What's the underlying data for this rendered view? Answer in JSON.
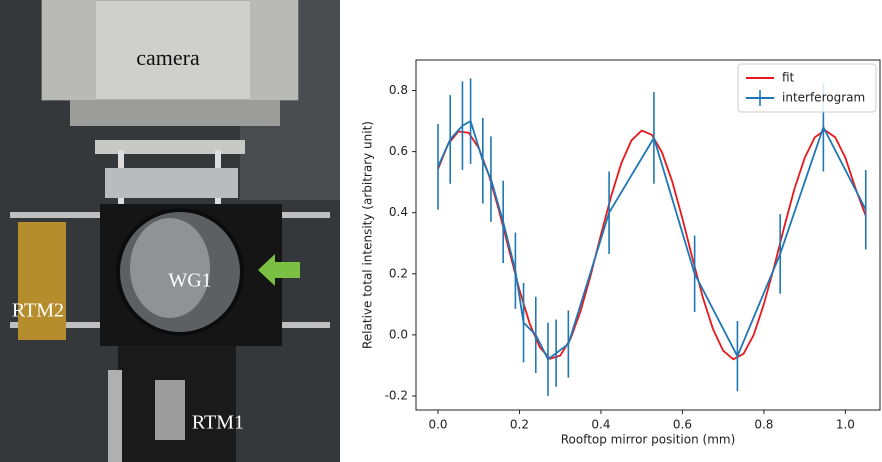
{
  "photo": {
    "labels": [
      "camera",
      "WG1",
      "RTM2",
      "RTM1"
    ]
  },
  "chart_data": {
    "type": "line",
    "xlabel": "Rooftop mirror position (mm)",
    "ylabel": "Relative total intensity (arbitrary unit)",
    "xlim": [
      -0.054,
      1.085
    ],
    "ylim": [
      -0.246,
      0.9
    ],
    "xticks": [
      {
        "value": 0,
        "label": "0.0"
      },
      0.2,
      0.4,
      0.6,
      0.8,
      {
        "value": 1,
        "label": "1.0"
      }
    ],
    "yticks": [
      -0.2,
      {
        "value": 0,
        "label": "0.0"
      },
      0.2,
      0.4,
      0.6,
      0.8
    ],
    "legend": "upper right",
    "series": [
      {
        "name": "fit",
        "color": "#e8191c",
        "x": [
          0,
          0.025,
          0.05,
          0.075,
          0.1,
          0.125,
          0.15,
          0.175,
          0.2,
          0.225,
          0.25,
          0.275,
          0.3,
          0.325,
          0.35,
          0.375,
          0.4,
          0.425,
          0.45,
          0.475,
          0.5,
          0.525,
          0.55,
          0.575,
          0.6,
          0.625,
          0.65,
          0.675,
          0.7,
          0.725,
          0.75,
          0.775,
          0.8,
          0.825,
          0.85,
          0.875,
          0.9,
          0.925,
          0.95,
          0.975,
          1.0,
          1.025,
          1.05
        ],
        "values": [
          0.543,
          0.625,
          0.666,
          0.662,
          0.612,
          0.523,
          0.406,
          0.275,
          0.147,
          0.037,
          -0.041,
          -0.078,
          -0.068,
          -0.014,
          0.078,
          0.196,
          0.328,
          0.454,
          0.562,
          0.637,
          0.669,
          0.655,
          0.597,
          0.502,
          0.381,
          0.249,
          0.123,
          0.019,
          -0.052,
          -0.08,
          -0.062,
          0.0,
          0.101,
          0.222,
          0.354,
          0.478,
          0.579,
          0.647,
          0.67,
          0.647,
          0.58,
          0.479,
          0.39
        ]
      },
      {
        "name": "interferogram",
        "color": "#1f77b4",
        "x": [
          0,
          0.03,
          0.06,
          0.08,
          0.11,
          0.13,
          0.16,
          0.19,
          0.21,
          0.24,
          0.27,
          0.29,
          0.32,
          0.42,
          0.53,
          0.63,
          0.735,
          0.84,
          0.946,
          1.05
        ],
        "values": [
          0.55,
          0.64,
          0.685,
          0.7,
          0.57,
          0.51,
          0.37,
          0.21,
          0.04,
          0.0,
          -0.08,
          -0.06,
          -0.03,
          0.4,
          0.645,
          0.2,
          -0.07,
          0.265,
          0.68,
          0.41
        ],
        "errors": [
          0.14,
          0.145,
          0.145,
          0.14,
          0.14,
          0.14,
          0.135,
          0.125,
          0.13,
          0.125,
          0.12,
          0.11,
          0.11,
          0.135,
          0.15,
          0.125,
          0.115,
          0.13,
          0.145,
          0.13
        ]
      }
    ]
  }
}
